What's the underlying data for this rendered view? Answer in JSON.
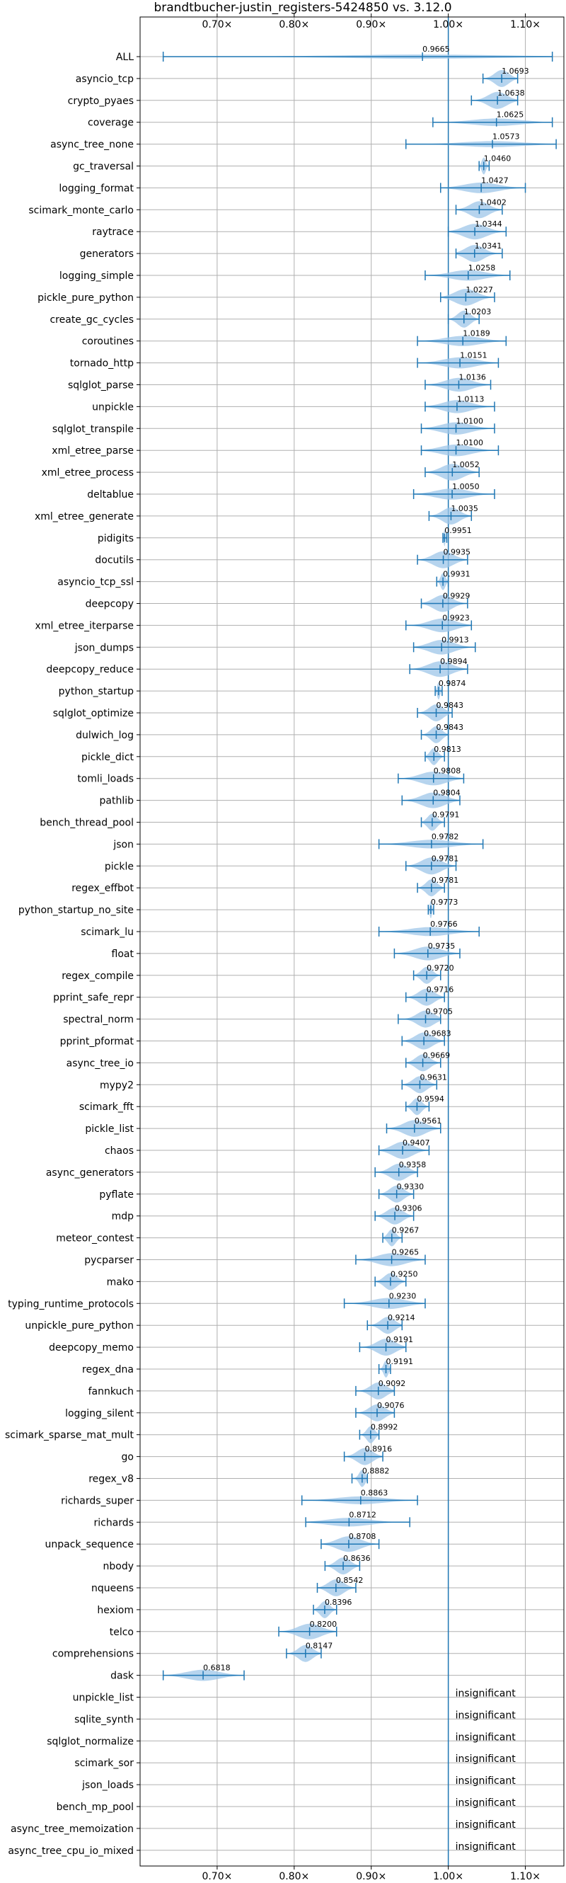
{
  "chart_data": {
    "type": "violin",
    "title": "brandtbucher-justin_registers-5424850 vs. 3.12.0",
    "xlim": [
      0.6,
      1.15
    ],
    "x_ticks": [
      0.7,
      0.8,
      0.9,
      1.0,
      1.1
    ],
    "x_tick_labels": [
      "0.70×",
      "0.80×",
      "0.90×",
      "1.00×",
      "1.10×"
    ],
    "reference_line": 1.0,
    "grid": true,
    "colors": {
      "axis": "#000000",
      "grid": "#b0b0b0",
      "line": "#1f77b4",
      "violin": "#9ec5e8"
    },
    "benchmarks": [
      {
        "name": "ALL",
        "value": 0.9665,
        "value_label": "0.9665",
        "min": 0.63,
        "max": 1.135
      },
      {
        "name": "asyncio_tcp",
        "value": 1.0693,
        "value_label": "1.0693",
        "min": 1.045,
        "max": 1.09
      },
      {
        "name": "crypto_pyaes",
        "value": 1.0638,
        "value_label": "1.0638",
        "min": 1.03,
        "max": 1.09
      },
      {
        "name": "coverage",
        "value": 1.0625,
        "value_label": "1.0625",
        "min": 0.98,
        "max": 1.135
      },
      {
        "name": "async_tree_none",
        "value": 1.0573,
        "value_label": "1.0573",
        "min": 0.945,
        "max": 1.14
      },
      {
        "name": "gc_traversal",
        "value": 1.046,
        "value_label": "1.0460",
        "min": 1.04,
        "max": 1.053
      },
      {
        "name": "logging_format",
        "value": 1.0427,
        "value_label": "1.0427",
        "min": 0.99,
        "max": 1.1
      },
      {
        "name": "scimark_monte_carlo",
        "value": 1.0402,
        "value_label": "1.0402",
        "min": 1.01,
        "max": 1.07
      },
      {
        "name": "raytrace",
        "value": 1.0344,
        "value_label": "1.0344",
        "min": 1.0,
        "max": 1.075
      },
      {
        "name": "generators",
        "value": 1.0341,
        "value_label": "1.0341",
        "min": 1.01,
        "max": 1.07
      },
      {
        "name": "logging_simple",
        "value": 1.0258,
        "value_label": "1.0258",
        "min": 0.97,
        "max": 1.08
      },
      {
        "name": "pickle_pure_python",
        "value": 1.0227,
        "value_label": "1.0227",
        "min": 0.99,
        "max": 1.06
      },
      {
        "name": "create_gc_cycles",
        "value": 1.0203,
        "value_label": "1.0203",
        "min": 1.0,
        "max": 1.04
      },
      {
        "name": "coroutines",
        "value": 1.0189,
        "value_label": "1.0189",
        "min": 0.96,
        "max": 1.075
      },
      {
        "name": "tornado_http",
        "value": 1.0151,
        "value_label": "1.0151",
        "min": 0.96,
        "max": 1.065
      },
      {
        "name": "sqlglot_parse",
        "value": 1.0136,
        "value_label": "1.0136",
        "min": 0.97,
        "max": 1.055
      },
      {
        "name": "unpickle",
        "value": 1.0113,
        "value_label": "1.0113",
        "min": 0.97,
        "max": 1.06
      },
      {
        "name": "sqlglot_transpile",
        "value": 1.01,
        "value_label": "1.0100",
        "min": 0.965,
        "max": 1.06
      },
      {
        "name": "xml_etree_parse",
        "value": 1.01,
        "value_label": "1.0100",
        "min": 0.965,
        "max": 1.065
      },
      {
        "name": "xml_etree_process",
        "value": 1.0052,
        "value_label": "1.0052",
        "min": 0.97,
        "max": 1.04
      },
      {
        "name": "deltablue",
        "value": 1.005,
        "value_label": "1.0050",
        "min": 0.955,
        "max": 1.06
      },
      {
        "name": "xml_etree_generate",
        "value": 1.0035,
        "value_label": "1.0035",
        "min": 0.975,
        "max": 1.03
      },
      {
        "name": "pidigits",
        "value": 0.9951,
        "value_label": "0.9951",
        "min": 0.993,
        "max": 0.998
      },
      {
        "name": "docutils",
        "value": 0.9935,
        "value_label": "0.9935",
        "min": 0.96,
        "max": 1.025
      },
      {
        "name": "asyncio_tcp_ssl",
        "value": 0.9931,
        "value_label": "0.9931",
        "min": 0.985,
        "max": 1.0
      },
      {
        "name": "deepcopy",
        "value": 0.9929,
        "value_label": "0.9929",
        "min": 0.965,
        "max": 1.025
      },
      {
        "name": "xml_etree_iterparse",
        "value": 0.9923,
        "value_label": "0.9923",
        "min": 0.945,
        "max": 1.03
      },
      {
        "name": "json_dumps",
        "value": 0.9913,
        "value_label": "0.9913",
        "min": 0.955,
        "max": 1.035
      },
      {
        "name": "deepcopy_reduce",
        "value": 0.9894,
        "value_label": "0.9894",
        "min": 0.95,
        "max": 1.025
      },
      {
        "name": "python_startup",
        "value": 0.9874,
        "value_label": "0.9874",
        "min": 0.983,
        "max": 0.992
      },
      {
        "name": "sqlglot_optimize",
        "value": 0.9843,
        "value_label": "0.9843",
        "min": 0.96,
        "max": 1.005
      },
      {
        "name": "dulwich_log",
        "value": 0.9843,
        "value_label": "0.9843",
        "min": 0.965,
        "max": 1.0
      },
      {
        "name": "pickle_dict",
        "value": 0.9813,
        "value_label": "0.9813",
        "min": 0.97,
        "max": 0.995
      },
      {
        "name": "tomli_loads",
        "value": 0.9808,
        "value_label": "0.9808",
        "min": 0.935,
        "max": 1.02
      },
      {
        "name": "pathlib",
        "value": 0.9804,
        "value_label": "0.9804",
        "min": 0.94,
        "max": 1.015
      },
      {
        "name": "bench_thread_pool",
        "value": 0.9791,
        "value_label": "0.9791",
        "min": 0.965,
        "max": 0.995
      },
      {
        "name": "json",
        "value": 0.9782,
        "value_label": "0.9782",
        "min": 0.91,
        "max": 1.045
      },
      {
        "name": "pickle",
        "value": 0.9781,
        "value_label": "0.9781",
        "min": 0.945,
        "max": 1.01
      },
      {
        "name": "regex_effbot",
        "value": 0.9781,
        "value_label": "0.9781",
        "min": 0.96,
        "max": 0.995
      },
      {
        "name": "python_startup_no_site",
        "value": 0.9773,
        "value_label": "0.9773",
        "min": 0.974,
        "max": 0.981
      },
      {
        "name": "scimark_lu",
        "value": 0.9766,
        "value_label": "0.9766",
        "min": 0.91,
        "max": 1.04
      },
      {
        "name": "float",
        "value": 0.9735,
        "value_label": "0.9735",
        "min": 0.93,
        "max": 1.015
      },
      {
        "name": "regex_compile",
        "value": 0.972,
        "value_label": "0.9720",
        "min": 0.955,
        "max": 0.99
      },
      {
        "name": "pprint_safe_repr",
        "value": 0.9716,
        "value_label": "0.9716",
        "min": 0.945,
        "max": 0.995
      },
      {
        "name": "spectral_norm",
        "value": 0.9705,
        "value_label": "0.9705",
        "min": 0.935,
        "max": 0.99
      },
      {
        "name": "pprint_pformat",
        "value": 0.9683,
        "value_label": "0.9683",
        "min": 0.94,
        "max": 0.995
      },
      {
        "name": "async_tree_io",
        "value": 0.9669,
        "value_label": "0.9669",
        "min": 0.945,
        "max": 0.99
      },
      {
        "name": "mypy2",
        "value": 0.9631,
        "value_label": "0.9631",
        "min": 0.94,
        "max": 0.985
      },
      {
        "name": "scimark_fft",
        "value": 0.9594,
        "value_label": "0.9594",
        "min": 0.945,
        "max": 0.975
      },
      {
        "name": "pickle_list",
        "value": 0.9561,
        "value_label": "0.9561",
        "min": 0.92,
        "max": 0.99
      },
      {
        "name": "chaos",
        "value": 0.9407,
        "value_label": "0.9407",
        "min": 0.91,
        "max": 0.975
      },
      {
        "name": "async_generators",
        "value": 0.9358,
        "value_label": "0.9358",
        "min": 0.905,
        "max": 0.96
      },
      {
        "name": "pyflate",
        "value": 0.933,
        "value_label": "0.9330",
        "min": 0.91,
        "max": 0.955
      },
      {
        "name": "mdp",
        "value": 0.9306,
        "value_label": "0.9306",
        "min": 0.905,
        "max": 0.955
      },
      {
        "name": "meteor_contest",
        "value": 0.9267,
        "value_label": "0.9267",
        "min": 0.915,
        "max": 0.94
      },
      {
        "name": "pycparser",
        "value": 0.9265,
        "value_label": "0.9265",
        "min": 0.88,
        "max": 0.97
      },
      {
        "name": "mako",
        "value": 0.925,
        "value_label": "0.9250",
        "min": 0.905,
        "max": 0.945
      },
      {
        "name": "typing_runtime_protocols",
        "value": 0.923,
        "value_label": "0.9230",
        "min": 0.865,
        "max": 0.97
      },
      {
        "name": "unpickle_pure_python",
        "value": 0.9214,
        "value_label": "0.9214",
        "min": 0.895,
        "max": 0.94
      },
      {
        "name": "deepcopy_memo",
        "value": 0.9191,
        "value_label": "0.9191",
        "min": 0.885,
        "max": 0.945
      },
      {
        "name": "regex_dna",
        "value": 0.9191,
        "value_label": "0.9191",
        "min": 0.91,
        "max": 0.925
      },
      {
        "name": "fannkuch",
        "value": 0.9092,
        "value_label": "0.9092",
        "min": 0.88,
        "max": 0.93
      },
      {
        "name": "logging_silent",
        "value": 0.9076,
        "value_label": "0.9076",
        "min": 0.88,
        "max": 0.93
      },
      {
        "name": "scimark_sparse_mat_mult",
        "value": 0.8992,
        "value_label": "0.8992",
        "min": 0.885,
        "max": 0.91
      },
      {
        "name": "go",
        "value": 0.8916,
        "value_label": "0.8916",
        "min": 0.865,
        "max": 0.915
      },
      {
        "name": "regex_v8",
        "value": 0.8882,
        "value_label": "0.8882",
        "min": 0.875,
        "max": 0.895
      },
      {
        "name": "richards_super",
        "value": 0.8863,
        "value_label": "0.8863",
        "min": 0.81,
        "max": 0.96
      },
      {
        "name": "richards",
        "value": 0.8712,
        "value_label": "0.8712",
        "min": 0.815,
        "max": 0.95
      },
      {
        "name": "unpack_sequence",
        "value": 0.8708,
        "value_label": "0.8708",
        "min": 0.835,
        "max": 0.91
      },
      {
        "name": "nbody",
        "value": 0.8636,
        "value_label": "0.8636",
        "min": 0.84,
        "max": 0.885
      },
      {
        "name": "nqueens",
        "value": 0.8542,
        "value_label": "0.8542",
        "min": 0.83,
        "max": 0.88
      },
      {
        "name": "hexiom",
        "value": 0.8396,
        "value_label": "0.8396",
        "min": 0.825,
        "max": 0.855
      },
      {
        "name": "telco",
        "value": 0.82,
        "value_label": "0.8200",
        "min": 0.78,
        "max": 0.855
      },
      {
        "name": "comprehensions",
        "value": 0.8147,
        "value_label": "0.8147",
        "min": 0.79,
        "max": 0.835
      },
      {
        "name": "dask",
        "value": 0.6818,
        "value_label": "0.6818",
        "min": 0.63,
        "max": 0.735
      },
      {
        "name": "unpickle_list",
        "note": "insignificant"
      },
      {
        "name": "sqlite_synth",
        "note": "insignificant"
      },
      {
        "name": "sqlglot_normalize",
        "note": "insignificant"
      },
      {
        "name": "scimark_sor",
        "note": "insignificant"
      },
      {
        "name": "json_loads",
        "note": "insignificant"
      },
      {
        "name": "bench_mp_pool",
        "note": "insignificant"
      },
      {
        "name": "async_tree_memoization",
        "note": "insignificant"
      },
      {
        "name": "async_tree_cpu_io_mixed",
        "note": "insignificant"
      }
    ]
  }
}
